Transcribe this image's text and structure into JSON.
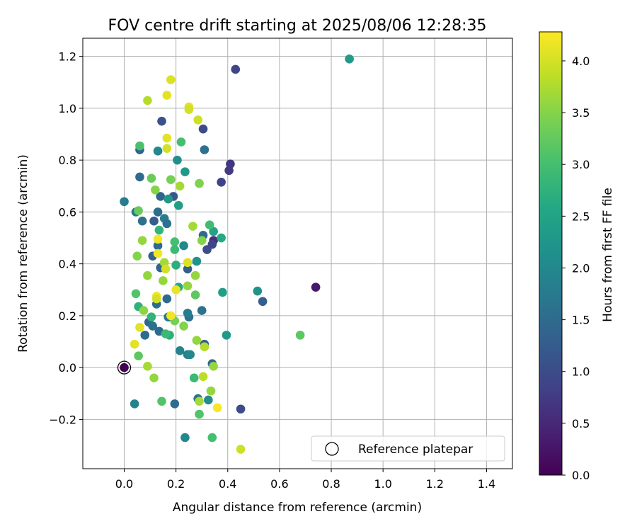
{
  "chart_data": {
    "type": "scatter",
    "title": "FOV centre drift starting at 2025/08/06 12:28:35",
    "xlabel": "Angular distance from reference (arcmin)",
    "ylabel": "Rotation from reference (arcmin)",
    "xlim": [
      -0.16,
      1.5
    ],
    "ylim": [
      -0.39,
      1.27
    ],
    "xticks": [
      0.0,
      0.2,
      0.4,
      0.6,
      0.8,
      1.0,
      1.2,
      1.4
    ],
    "xtick_labels": [
      "0.0",
      "0.2",
      "0.4",
      "0.6",
      "0.8",
      "1.0",
      "1.2",
      "1.4"
    ],
    "yticks": [
      -0.2,
      0.0,
      0.2,
      0.4,
      0.6,
      0.8,
      1.0,
      1.2
    ],
    "ytick_labels": [
      "−0.2",
      "0.0",
      "0.2",
      "0.4",
      "0.6",
      "0.8",
      "1.0",
      "1.2"
    ],
    "grid": true,
    "legend": {
      "placement": "lower-right",
      "entries": [
        "Reference platepar"
      ]
    },
    "colorbar": {
      "label": "Hours from first FF file",
      "colormap": "viridis",
      "range": [
        0.0,
        4.28
      ],
      "ticks": [
        0.0,
        0.5,
        1.0,
        1.5,
        2.0,
        2.5,
        3.0,
        3.5,
        4.0
      ],
      "tick_labels": [
        "0.0",
        "0.5",
        "1.0",
        "1.5",
        "2.0",
        "2.5",
        "3.0",
        "3.5",
        "4.0"
      ]
    },
    "reference_point": {
      "x": 0.0,
      "y": 0.0,
      "hours": 0.0
    },
    "points": [
      [
        0.0,
        0.0,
        0.0
      ],
      [
        0.74,
        0.31,
        0.3
      ],
      [
        0.43,
        1.15,
        0.9
      ],
      [
        0.45,
        -0.16,
        1.0
      ],
      [
        0.41,
        0.785,
        0.7
      ],
      [
        0.405,
        0.76,
        0.75
      ],
      [
        0.375,
        0.715,
        0.85
      ],
      [
        0.345,
        0.49,
        0.6
      ],
      [
        0.32,
        0.455,
        1.0
      ],
      [
        0.34,
        0.475,
        0.9
      ],
      [
        0.305,
        0.92,
        1.0
      ],
      [
        0.145,
        0.95,
        1.1
      ],
      [
        0.535,
        0.255,
        1.3
      ],
      [
        0.06,
        0.84,
        1.4
      ],
      [
        0.06,
        0.735,
        1.5
      ],
      [
        0.31,
        0.84,
        1.6
      ],
      [
        0.305,
        0.51,
        1.5
      ],
      [
        0.19,
        0.66,
        1.2
      ],
      [
        0.115,
        0.565,
        1.25
      ],
      [
        0.13,
        0.6,
        1.55
      ],
      [
        0.14,
        0.66,
        1.4
      ],
      [
        0.155,
        0.575,
        1.8
      ],
      [
        0.07,
        0.565,
        1.6
      ],
      [
        0.045,
        0.6,
        1.75
      ],
      [
        0.0,
        0.64,
        1.8
      ],
      [
        0.165,
        0.555,
        1.6
      ],
      [
        0.11,
        0.43,
        1.3
      ],
      [
        0.13,
        0.47,
        1.5
      ],
      [
        0.14,
        0.385,
        1.35
      ],
      [
        0.165,
        0.265,
        1.5
      ],
      [
        0.245,
        0.38,
        1.3
      ],
      [
        0.125,
        0.245,
        1.55
      ],
      [
        0.095,
        0.175,
        1.4
      ],
      [
        0.11,
        0.16,
        1.6
      ],
      [
        0.135,
        0.14,
        1.5
      ],
      [
        0.08,
        0.125,
        1.5
      ],
      [
        0.17,
        0.195,
        1.7
      ],
      [
        0.25,
        0.195,
        1.6
      ],
      [
        0.245,
        0.21,
        1.8
      ],
      [
        0.3,
        0.22,
        1.6
      ],
      [
        0.31,
        0.09,
        1.3
      ],
      [
        0.34,
        0.015,
        1.4
      ],
      [
        0.285,
        -0.12,
        1.6
      ],
      [
        0.195,
        -0.14,
        1.5
      ],
      [
        0.04,
        -0.14,
        1.9
      ],
      [
        0.235,
        -0.27,
        2.0
      ],
      [
        0.215,
        0.065,
        1.9
      ],
      [
        0.245,
        0.05,
        1.8
      ],
      [
        0.255,
        0.05,
        2.0
      ],
      [
        0.325,
        -0.125,
        2.1
      ],
      [
        0.28,
        0.41,
        2.2
      ],
      [
        0.23,
        0.47,
        2.0
      ],
      [
        0.205,
        0.8,
        2.1
      ],
      [
        0.13,
        0.835,
        2.0
      ],
      [
        0.17,
        0.65,
        2.3
      ],
      [
        0.21,
        0.625,
        2.4
      ],
      [
        0.235,
        0.755,
        2.3
      ],
      [
        0.345,
        0.525,
        2.5
      ],
      [
        0.375,
        0.5,
        2.6
      ],
      [
        0.38,
        0.29,
        2.4
      ],
      [
        0.395,
        0.125,
        2.3
      ],
      [
        0.515,
        0.295,
        2.2
      ],
      [
        0.87,
        1.19,
        2.35
      ],
      [
        0.21,
        0.31,
        2.6
      ],
      [
        0.2,
        0.395,
        2.7
      ],
      [
        0.135,
        0.53,
        2.8
      ],
      [
        0.055,
        0.235,
        2.75
      ],
      [
        0.175,
        0.125,
        2.7
      ],
      [
        0.16,
        0.13,
        2.9
      ],
      [
        0.105,
        0.195,
        2.8
      ],
      [
        0.045,
        0.285,
        3.1
      ],
      [
        0.22,
        0.87,
        3.0
      ],
      [
        0.195,
        0.485,
        3.0
      ],
      [
        0.195,
        0.455,
        2.9
      ],
      [
        0.33,
        0.55,
        2.95
      ],
      [
        0.275,
        0.28,
        3.2
      ],
      [
        0.27,
        -0.04,
        2.9
      ],
      [
        0.29,
        -0.18,
        3.1
      ],
      [
        0.34,
        -0.27,
        3.0
      ],
      [
        0.145,
        -0.13,
        3.1
      ],
      [
        0.055,
        0.045,
        3.2
      ],
      [
        0.105,
        0.73,
        3.3
      ],
      [
        0.06,
        0.855,
        3.05
      ],
      [
        0.055,
        0.605,
        3.3
      ],
      [
        0.12,
        0.685,
        3.5
      ],
      [
        0.18,
        0.725,
        3.4
      ],
      [
        0.215,
        0.7,
        3.7
      ],
      [
        0.29,
        0.71,
        3.45
      ],
      [
        0.68,
        0.125,
        3.2
      ],
      [
        0.07,
        0.49,
        3.6
      ],
      [
        0.05,
        0.43,
        3.5
      ],
      [
        0.09,
        0.355,
        3.6
      ],
      [
        0.15,
        0.335,
        3.6
      ],
      [
        0.155,
        0.405,
        3.7
      ],
      [
        0.23,
        0.16,
        3.5
      ],
      [
        0.195,
        0.18,
        3.4
      ],
      [
        0.115,
        -0.04,
        3.6
      ],
      [
        0.09,
        0.005,
        3.7
      ],
      [
        0.265,
        0.545,
        3.7
      ],
      [
        0.3,
        0.49,
        3.5
      ],
      [
        0.275,
        0.355,
        3.6
      ],
      [
        0.245,
        0.315,
        3.6
      ],
      [
        0.28,
        0.105,
        3.6
      ],
      [
        0.31,
        0.08,
        3.8
      ],
      [
        0.335,
        -0.09,
        3.6
      ],
      [
        0.29,
        -0.13,
        3.7
      ],
      [
        0.305,
        -0.035,
        3.85
      ],
      [
        0.345,
        0.005,
        3.6
      ],
      [
        0.45,
        -0.315,
        3.95
      ],
      [
        0.285,
        0.955,
        3.95
      ],
      [
        0.09,
        1.03,
        3.8
      ],
      [
        0.165,
        1.05,
        4.1
      ],
      [
        0.18,
        1.11,
        4.05
      ],
      [
        0.25,
        1.005,
        4.1
      ],
      [
        0.25,
        0.995,
        4.0
      ],
      [
        0.165,
        0.845,
        4.0
      ],
      [
        0.165,
        0.885,
        4.1
      ],
      [
        0.13,
        0.44,
        4.2
      ],
      [
        0.13,
        0.495,
        4.2
      ],
      [
        0.16,
        0.38,
        4.0
      ],
      [
        0.245,
        0.405,
        4.05
      ],
      [
        0.125,
        0.275,
        4.2
      ],
      [
        0.125,
        0.265,
        4.0
      ],
      [
        0.2,
        0.3,
        4.15
      ],
      [
        0.18,
        0.2,
        4.2
      ],
      [
        0.06,
        0.155,
        4.1
      ],
      [
        0.04,
        0.09,
        4.1
      ],
      [
        0.36,
        -0.155,
        4.25
      ],
      [
        0.075,
        0.22,
        3.55
      ]
    ]
  }
}
